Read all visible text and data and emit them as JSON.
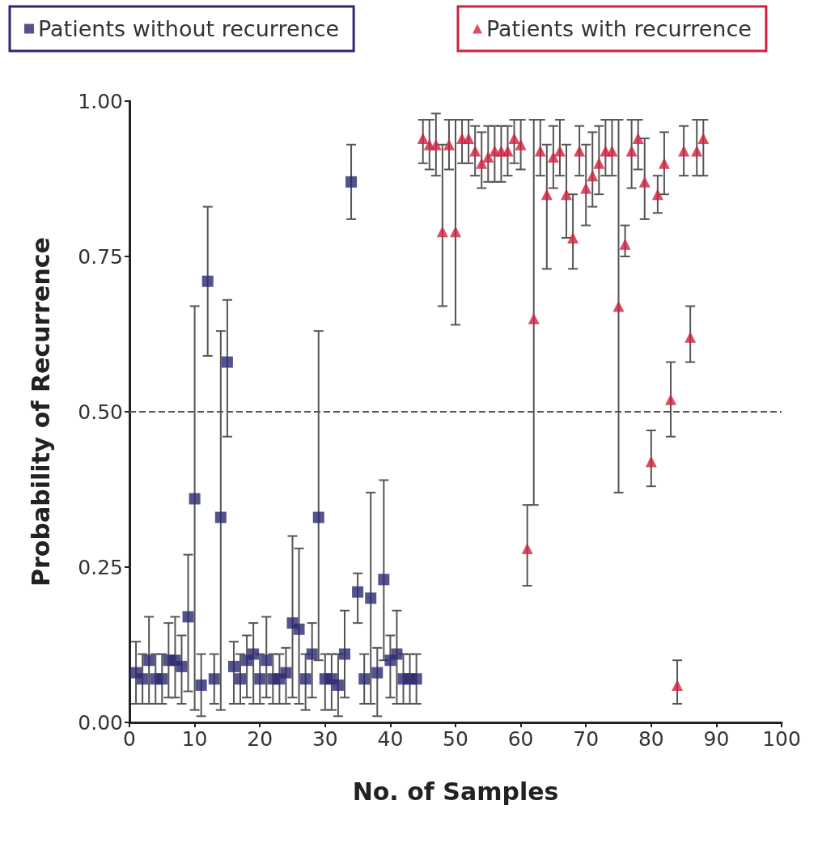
{
  "chart_data": {
    "type": "scatter",
    "xlabel": "No. of Samples",
    "ylabel": "Probability of Recurrence",
    "xlim": [
      0,
      100
    ],
    "xticks": [
      0,
      10,
      20,
      30,
      40,
      50,
      60,
      70,
      80,
      90,
      100
    ],
    "ylim": [
      0,
      1
    ],
    "yticks": [
      {
        "value": 0,
        "label": "0.00"
      },
      {
        "value": 0.25,
        "label": "0.25"
      },
      {
        "value": 0.5,
        "label": "0.50"
      },
      {
        "value": 0.75,
        "label": "0.75"
      },
      {
        "value": 1,
        "label": "1.00"
      }
    ],
    "grid": false,
    "legend": "top",
    "ref_lines": [
      {
        "axis": "y",
        "value": 0.5,
        "color": "#555555",
        "line_style": "dashed"
      }
    ],
    "series": [
      {
        "name": "Patients without recurrence",
        "color": "#2a2870",
        "marker": "square",
        "x": [
          1,
          2,
          3,
          4,
          5,
          6,
          7,
          8,
          9,
          10,
          11,
          12,
          13,
          14,
          15,
          16,
          17,
          18,
          19,
          20,
          21,
          22,
          23,
          24,
          25,
          26,
          27,
          28,
          29,
          30,
          31,
          32,
          33,
          34,
          35,
          36,
          37,
          38,
          39,
          40,
          41,
          42,
          43,
          44
        ],
        "values": [
          0.08,
          0.07,
          0.1,
          0.07,
          0.07,
          0.1,
          0.1,
          0.09,
          0.17,
          0.36,
          0.06,
          0.71,
          0.07,
          0.33,
          0.58,
          0.09,
          0.07,
          0.1,
          0.11,
          0.07,
          0.1,
          0.07,
          0.07,
          0.08,
          0.16,
          0.15,
          0.07,
          0.11,
          0.33,
          0.07,
          0.07,
          0.06,
          0.11,
          0.87,
          0.21,
          0.07,
          0.2,
          0.08,
          0.23,
          0.1,
          0.11,
          0.07,
          0.07,
          0.07
        ],
        "errors": [
          [
            0.03,
            0.13
          ],
          [
            0.03,
            0.11
          ],
          [
            0.03,
            0.17
          ],
          [
            0.03,
            0.11
          ],
          [
            0.03,
            0.11
          ],
          [
            0.04,
            0.16
          ],
          [
            0.04,
            0.17
          ],
          [
            0.03,
            0.14
          ],
          [
            0.05,
            0.27
          ],
          [
            0.02,
            0.67
          ],
          [
            0.01,
            0.11
          ],
          [
            0.59,
            0.83
          ],
          [
            0.03,
            0.11
          ],
          [
            0.02,
            0.63
          ],
          [
            0.46,
            0.68
          ],
          [
            0.03,
            0.13
          ],
          [
            0.03,
            0.11
          ],
          [
            0.04,
            0.14
          ],
          [
            0.03,
            0.16
          ],
          [
            0.03,
            0.11
          ],
          [
            0.04,
            0.17
          ],
          [
            0.03,
            0.11
          ],
          [
            0.03,
            0.11
          ],
          [
            0.03,
            0.12
          ],
          [
            0.04,
            0.3
          ],
          [
            0.03,
            0.28
          ],
          [
            0.02,
            0.11
          ],
          [
            0.04,
            0.16
          ],
          [
            0.1,
            0.63
          ],
          [
            0.02,
            0.11
          ],
          [
            0.02,
            0.11
          ],
          [
            0.01,
            0.11
          ],
          [
            0.04,
            0.18
          ],
          [
            0.81,
            0.93
          ],
          [
            0.16,
            0.24
          ],
          [
            0.03,
            0.11
          ],
          [
            0.03,
            0.37
          ],
          [
            0.01,
            0.12
          ],
          [
            0.1,
            0.39
          ],
          [
            0.04,
            0.14
          ],
          [
            0.03,
            0.18
          ],
          [
            0.03,
            0.11
          ],
          [
            0.03,
            0.11
          ],
          [
            0.03,
            0.11
          ]
        ]
      },
      {
        "name": "Patients with recurrence",
        "color": "#d0213f",
        "marker": "triangle",
        "x": [
          45,
          46,
          47,
          48,
          49,
          50,
          51,
          52,
          53,
          54,
          55,
          56,
          57,
          58,
          59,
          60,
          61,
          62,
          63,
          64,
          65,
          66,
          67,
          68,
          69,
          70,
          71,
          72,
          73,
          74,
          75,
          76,
          77,
          78,
          79,
          80,
          81,
          82,
          83,
          84,
          85,
          86,
          87,
          88
        ],
        "values": [
          0.94,
          0.93,
          0.93,
          0.79,
          0.93,
          0.79,
          0.94,
          0.94,
          0.92,
          0.9,
          0.91,
          0.92,
          0.92,
          0.92,
          0.94,
          0.93,
          0.28,
          0.65,
          0.92,
          0.85,
          0.91,
          0.92,
          0.85,
          0.78,
          0.92,
          0.86,
          0.88,
          0.9,
          0.92,
          0.92,
          0.67,
          0.77,
          0.92,
          0.94,
          0.87,
          0.42,
          0.85,
          0.9,
          0.52,
          0.06,
          0.92,
          0.62,
          0.92,
          0.94
        ],
        "errors": [
          [
            0.9,
            0.97
          ],
          [
            0.89,
            0.97
          ],
          [
            0.88,
            0.98
          ],
          [
            0.67,
            0.93
          ],
          [
            0.89,
            0.97
          ],
          [
            0.64,
            0.97
          ],
          [
            0.9,
            0.97
          ],
          [
            0.9,
            0.97
          ],
          [
            0.88,
            0.96
          ],
          [
            0.86,
            0.95
          ],
          [
            0.87,
            0.96
          ],
          [
            0.87,
            0.96
          ],
          [
            0.87,
            0.96
          ],
          [
            0.88,
            0.96
          ],
          [
            0.9,
            0.97
          ],
          [
            0.89,
            0.97
          ],
          [
            0.22,
            0.35
          ],
          [
            0.35,
            0.97
          ],
          [
            0.88,
            0.97
          ],
          [
            0.73,
            0.93
          ],
          [
            0.86,
            0.96
          ],
          [
            0.88,
            0.97
          ],
          [
            0.78,
            0.93
          ],
          [
            0.73,
            0.85
          ],
          [
            0.88,
            0.96
          ],
          [
            0.8,
            0.93
          ],
          [
            0.83,
            0.95
          ],
          [
            0.85,
            0.96
          ],
          [
            0.88,
            0.97
          ],
          [
            0.88,
            0.97
          ],
          [
            0.37,
            0.97
          ],
          [
            0.75,
            0.8
          ],
          [
            0.86,
            0.97
          ],
          [
            0.89,
            0.97
          ],
          [
            0.81,
            0.94
          ],
          [
            0.38,
            0.47
          ],
          [
            0.82,
            0.88
          ],
          [
            0.85,
            0.95
          ],
          [
            0.46,
            0.58
          ],
          [
            0.03,
            0.1
          ],
          [
            0.88,
            0.96
          ],
          [
            0.58,
            0.67
          ],
          [
            0.88,
            0.97
          ],
          [
            0.88,
            0.97
          ]
        ]
      }
    ]
  }
}
